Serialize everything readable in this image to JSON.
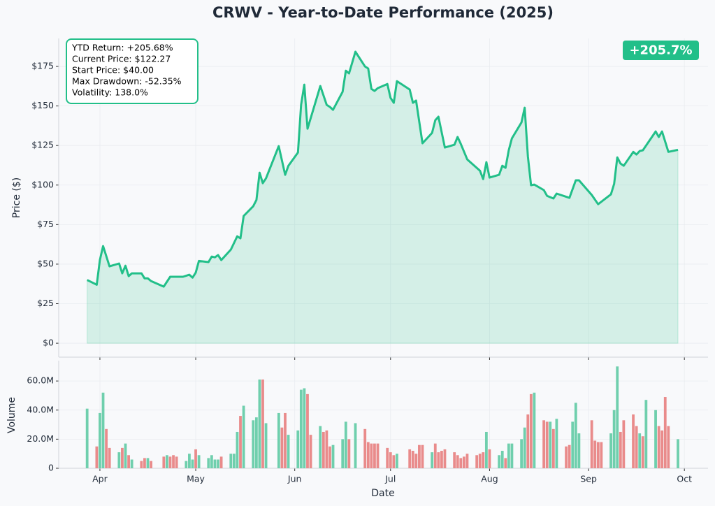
{
  "chart_data": [
    {
      "type": "line",
      "title": "CRWV - Year-to-Date Performance (2025)",
      "ylabel": "Price ($)",
      "stats": [
        "YTD Return: +205.68%",
        "Current Price: $122.27",
        "Start Price: $40.00",
        "Max Drawdown: -52.35%",
        "Volatility: 138.0%"
      ],
      "badge": "+205.7%",
      "color": "#22bf89",
      "area": true,
      "grid": true,
      "x": [
        87,
        90,
        91,
        92,
        94,
        97,
        98,
        99,
        100,
        101,
        104,
        105,
        106,
        107,
        111,
        113,
        117,
        119,
        120,
        121,
        122,
        125,
        126,
        127,
        128,
        129,
        132,
        134,
        135,
        136,
        139,
        140,
        141,
        142,
        143,
        147,
        149,
        150,
        153,
        154,
        155,
        156,
        160,
        162,
        163,
        164,
        167,
        168,
        169,
        171,
        174,
        175,
        176,
        177,
        178,
        181,
        182,
        183,
        184,
        188,
        189,
        190,
        192,
        195,
        196,
        197,
        199,
        202,
        203,
        204,
        206,
        210,
        211,
        212,
        213,
        216,
        217,
        218,
        219,
        220,
        223,
        224,
        225,
        226,
        227,
        230,
        231,
        233,
        234,
        238,
        240,
        241,
        245,
        247,
        251,
        252,
        253,
        254,
        255,
        258,
        259,
        260,
        261,
        265,
        266,
        267,
        269,
        272
      ],
      "values": [
        40,
        37,
        52.6,
        61.4,
        48.6,
        50.4,
        44.2,
        49,
        42.4,
        44.2,
        44.2,
        41,
        41,
        39.3,
        35.8,
        42,
        42,
        43.3,
        41.5,
        44.6,
        52,
        51.3,
        54.8,
        54.3,
        55.7,
        52.6,
        59.2,
        67.6,
        66.3,
        80.4,
        86.6,
        90.6,
        107.8,
        101.2,
        104.3,
        124.6,
        106.5,
        112.2,
        120.6,
        150.7,
        163.5,
        135.6,
        162.6,
        150.7,
        149.4,
        147.6,
        159,
        172.3,
        170.6,
        184.3,
        175,
        173.7,
        160.8,
        159.5,
        161.3,
        163.9,
        155.1,
        152,
        165.7,
        160.4,
        152,
        153.4,
        126.4,
        133,
        141,
        143.2,
        123.7,
        125.5,
        130.4,
        126,
        116.2,
        109.1,
        103.8,
        114.5,
        104.7,
        106.5,
        112.2,
        110.9,
        122,
        129.5,
        139.6,
        148.9,
        118,
        99.9,
        100.3,
        96.8,
        93.2,
        91.5,
        94.6,
        91.9,
        103,
        103,
        93.7,
        87.9,
        94.1,
        100.8,
        117.5,
        113.6,
        112.2,
        121,
        119.3,
        121.5,
        122,
        133.9,
        130.4,
        133.9,
        121,
        122.27
      ],
      "xlim": [
        78.1,
        281.4
      ],
      "xticks": [
        91,
        121,
        152,
        182,
        213,
        244,
        274
      ],
      "ylim": [
        -8.8,
        192.7
      ],
      "yticks": [
        {
          "value": 0,
          "label": "$0"
        },
        {
          "value": 25,
          "label": "$25"
        },
        {
          "value": 50,
          "label": "$50"
        },
        {
          "value": 75,
          "label": "$75"
        },
        {
          "value": 100,
          "label": "$100"
        },
        {
          "value": 125,
          "label": "$125"
        },
        {
          "value": 150,
          "label": "$150"
        },
        {
          "value": 175,
          "label": "$175"
        }
      ]
    },
    {
      "type": "bar",
      "ylabel": "Volume",
      "xlabel": "Date",
      "grid": true,
      "x": [
        87,
        90,
        91,
        92,
        93,
        94,
        97,
        98,
        99,
        100,
        101,
        104,
        105,
        106,
        107,
        111,
        112,
        113,
        114,
        115,
        118,
        119,
        120,
        121,
        122,
        125,
        126,
        127,
        128,
        129,
        132,
        133,
        134,
        135,
        136,
        139,
        140,
        141,
        142,
        143,
        147,
        148,
        149,
        150,
        153,
        154,
        155,
        156,
        157,
        160,
        161,
        162,
        163,
        164,
        167,
        168,
        169,
        171,
        174,
        175,
        176,
        177,
        178,
        181,
        182,
        183,
        184,
        188,
        189,
        190,
        191,
        192,
        195,
        196,
        197,
        198,
        199,
        202,
        203,
        204,
        205,
        206,
        209,
        210,
        211,
        212,
        213,
        216,
        217,
        218,
        219,
        220,
        223,
        224,
        225,
        226,
        227,
        230,
        231,
        232,
        233,
        234,
        237,
        238,
        239,
        240,
        241,
        245,
        246,
        247,
        248,
        251,
        252,
        253,
        254,
        255,
        258,
        259,
        260,
        261,
        262,
        265,
        266,
        267,
        268,
        269,
        272
      ],
      "values": [
        41,
        15,
        38,
        52,
        27,
        14,
        11,
        14,
        17,
        9,
        6,
        5,
        7,
        7,
        5,
        8,
        9,
        8,
        9,
        8,
        5,
        10,
        6,
        13,
        9,
        7,
        9,
        6,
        6,
        8,
        10,
        10,
        25,
        36,
        43,
        33,
        35,
        61,
        61,
        31,
        38,
        28,
        38,
        23,
        26,
        54,
        55,
        51,
        23,
        29,
        25,
        26,
        15,
        16,
        20,
        32,
        20,
        31,
        27,
        18,
        17,
        17,
        17,
        14,
        11,
        9,
        10,
        13,
        12,
        10,
        16,
        16,
        11,
        17,
        11,
        12,
        13,
        11,
        9,
        7,
        8,
        10,
        9,
        10,
        11,
        25,
        13,
        9,
        12,
        7,
        17,
        17,
        20,
        28,
        37,
        51,
        52,
        33,
        32,
        32,
        27,
        34,
        15,
        16,
        32,
        45,
        24,
        33,
        19,
        18,
        18,
        24,
        40,
        70,
        25,
        33,
        37,
        29,
        24,
        22,
        47,
        40,
        29,
        26,
        49,
        29,
        20
      ],
      "colors": [
        "#6fcfad",
        "#e98b8b",
        "#6fcfad",
        "#6fcfad",
        "#e98b8b",
        "#e98b8b",
        "#6fcfad",
        "#e98b8b",
        "#6fcfad",
        "#e98b8b",
        "#6fcfad",
        "#e98b8b",
        "#e98b8b",
        "#6fcfad",
        "#e98b8b",
        "#e98b8b",
        "#6fcfad",
        "#e98b8b",
        "#e98b8b",
        "#e98b8b",
        "#6fcfad",
        "#6fcfad",
        "#6fcfad",
        "#e98b8b",
        "#6fcfad",
        "#6fcfad",
        "#6fcfad",
        "#6fcfad",
        "#6fcfad",
        "#e98b8b",
        "#6fcfad",
        "#6fcfad",
        "#6fcfad",
        "#e98b8b",
        "#6fcfad",
        "#6fcfad",
        "#6fcfad",
        "#6fcfad",
        "#e98b8b",
        "#6fcfad",
        "#6fcfad",
        "#e98b8b",
        "#e98b8b",
        "#6fcfad",
        "#6fcfad",
        "#6fcfad",
        "#6fcfad",
        "#e98b8b",
        "#e98b8b",
        "#6fcfad",
        "#e98b8b",
        "#e98b8b",
        "#e98b8b",
        "#6fcfad",
        "#6fcfad",
        "#6fcfad",
        "#e98b8b",
        "#6fcfad",
        "#e98b8b",
        "#e98b8b",
        "#e98b8b",
        "#e98b8b",
        "#e98b8b",
        "#e98b8b",
        "#e98b8b",
        "#e98b8b",
        "#6fcfad",
        "#e98b8b",
        "#e98b8b",
        "#e98b8b",
        "#e98b8b",
        "#e98b8b",
        "#6fcfad",
        "#e98b8b",
        "#e98b8b",
        "#e98b8b",
        "#e98b8b",
        "#e98b8b",
        "#e98b8b",
        "#e98b8b",
        "#e98b8b",
        "#e98b8b",
        "#e98b8b",
        "#e98b8b",
        "#e98b8b",
        "#6fcfad",
        "#e98b8b",
        "#6fcfad",
        "#6fcfad",
        "#e98b8b",
        "#6fcfad",
        "#6fcfad",
        "#6fcfad",
        "#6fcfad",
        "#e98b8b",
        "#e98b8b",
        "#6fcfad",
        "#e98b8b",
        "#e98b8b",
        "#6fcfad",
        "#e98b8b",
        "#6fcfad",
        "#e98b8b",
        "#e98b8b",
        "#6fcfad",
        "#6fcfad",
        "#6fcfad",
        "#e98b8b",
        "#e98b8b",
        "#e98b8b",
        "#e98b8b",
        "#6fcfad",
        "#6fcfad",
        "#6fcfad",
        "#e98b8b",
        "#e98b8b",
        "#e98b8b",
        "#e98b8b",
        "#6fcfad",
        "#e98b8b",
        "#6fcfad",
        "#6fcfad",
        "#e98b8b",
        "#e98b8b",
        "#e98b8b",
        "#e98b8b",
        "#6fcfad"
      ],
      "xlim": [
        78.1,
        281.4
      ],
      "xticks": [
        {
          "value": 91,
          "label": "Apr"
        },
        {
          "value": 121,
          "label": "May"
        },
        {
          "value": 152,
          "label": "Jun"
        },
        {
          "value": 182,
          "label": "Jul"
        },
        {
          "value": 213,
          "label": "Aug"
        },
        {
          "value": 244,
          "label": "Sep"
        },
        {
          "value": 274,
          "label": "Oct"
        }
      ],
      "ylim": [
        0,
        74
      ],
      "yticks": [
        0,
        {
          "value": 20,
          "label": "20.0M"
        },
        {
          "value": 40,
          "label": "40.0M"
        },
        {
          "value": 60,
          "label": "60.0M"
        }
      ]
    }
  ]
}
